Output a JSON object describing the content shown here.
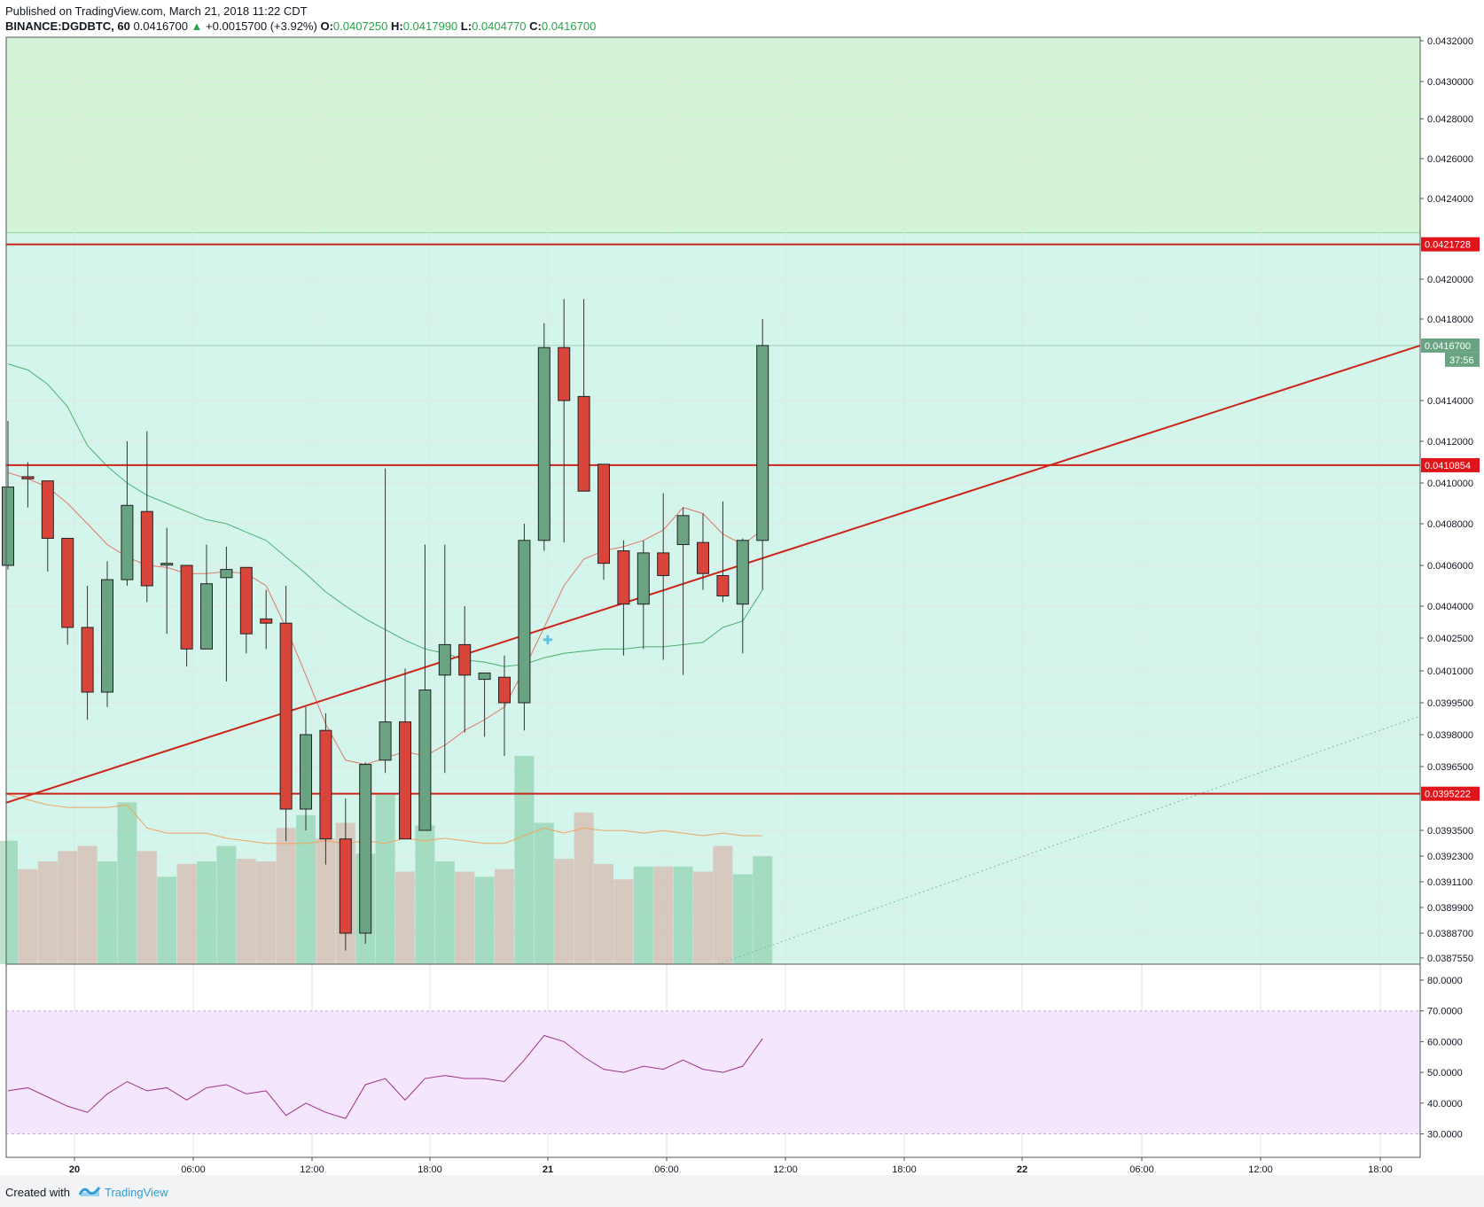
{
  "header": {
    "published": "Published on TradingView.com, March 21, 2018 11:22 CDT",
    "symbol": "BINANCE:DGDBTC, 60",
    "last": "0.0416700",
    "arrow": "▲",
    "change": "+0.0015700 (+3.92%)",
    "o_label": "O:",
    "o_value": "0.0407250",
    "h_label": "H:",
    "h_value": "0.0417990",
    "l_label": "L:",
    "l_value": "0.0404770",
    "c_label": "C:",
    "c_value": "0.0416700"
  },
  "footer": {
    "created": "Created with",
    "brand": "TradingView"
  },
  "colors": {
    "up": "#6aa382",
    "down": "#d9453b",
    "line": "#cc2418",
    "zone_top": "#d4f4d6",
    "zone_main": "#d4f5ec",
    "rsi_band": "#f4e6fc",
    "rsi_line": "#a0308a",
    "price_tag": "#6aa382",
    "level_tag": "#e0151b"
  },
  "chart_data": [
    {
      "type": "candlestick",
      "title": "BINANCE:DGDBTC, 60",
      "y_axis_labels": [
        "0.0432000",
        "0.0430000",
        "0.0428000",
        "0.0426000",
        "0.0424000",
        "0.0420000",
        "0.0418000",
        "0.0414000",
        "0.0412000",
        "0.0410000",
        "0.0408000",
        "0.0406000",
        "0.0404000",
        "0.0402500",
        "0.0401000",
        "0.0399500",
        "0.0398000",
        "0.0396500",
        "0.0393500",
        "0.0392300",
        "0.0391100",
        "0.0389900",
        "0.0388700",
        "0.0387550"
      ],
      "x_axis_labels": [
        "20",
        "06:00",
        "12:00",
        "18:00",
        "21",
        "06:00",
        "12:00",
        "18:00",
        "22",
        "06:00",
        "12:00",
        "18:00"
      ],
      "candles": [
        {
          "o": 0.0406,
          "h": 0.0413,
          "l": 0.04058,
          "c": 0.04098
        },
        {
          "o": 0.04103,
          "h": 0.0411,
          "l": 0.04088,
          "c": 0.04102
        },
        {
          "o": 0.04101,
          "h": 0.04101,
          "l": 0.04057,
          "c": 0.04073
        },
        {
          "o": 0.04073,
          "h": 0.04073,
          "l": 0.04022,
          "c": 0.0403
        },
        {
          "o": 0.0403,
          "h": 0.0405,
          "l": 0.03987,
          "c": 0.04
        },
        {
          "o": 0.04,
          "h": 0.04062,
          "l": 0.03993,
          "c": 0.04053
        },
        {
          "o": 0.04053,
          "h": 0.0412,
          "l": 0.0405,
          "c": 0.04089
        },
        {
          "o": 0.04086,
          "h": 0.04125,
          "l": 0.04042,
          "c": 0.0405
        },
        {
          "o": 0.04061,
          "h": 0.04078,
          "l": 0.04027,
          "c": 0.04061
        },
        {
          "o": 0.0406,
          "h": 0.0406,
          "l": 0.04012,
          "c": 0.0402
        },
        {
          "o": 0.0402,
          "h": 0.0407,
          "l": 0.0402,
          "c": 0.04051
        },
        {
          "o": 0.04054,
          "h": 0.04069,
          "l": 0.04005,
          "c": 0.04058
        },
        {
          "o": 0.04059,
          "h": 0.04059,
          "l": 0.04018,
          "c": 0.04027
        },
        {
          "o": 0.04034,
          "h": 0.04048,
          "l": 0.0402,
          "c": 0.04032
        },
        {
          "o": 0.04032,
          "h": 0.0405,
          "l": 0.0393,
          "c": 0.03945
        },
        {
          "o": 0.03945,
          "h": 0.03993,
          "l": 0.03935,
          "c": 0.0398
        },
        {
          "o": 0.03982,
          "h": 0.0399,
          "l": 0.03919,
          "c": 0.03931
        },
        {
          "o": 0.03931,
          "h": 0.0395,
          "l": 0.03879,
          "c": 0.03887
        },
        {
          "o": 0.03887,
          "h": 0.03967,
          "l": 0.03882,
          "c": 0.03966
        },
        {
          "o": 0.03968,
          "h": 0.04107,
          "l": 0.03962,
          "c": 0.03986
        },
        {
          "o": 0.03986,
          "h": 0.04011,
          "l": 0.03931,
          "c": 0.03931
        },
        {
          "o": 0.03935,
          "h": 0.0407,
          "l": 0.03935,
          "c": 0.04001
        },
        {
          "o": 0.04008,
          "h": 0.0407,
          "l": 0.03962,
          "c": 0.04022
        },
        {
          "o": 0.04022,
          "h": 0.0404,
          "l": 0.03981,
          "c": 0.04008
        },
        {
          "o": 0.04006,
          "h": 0.04009,
          "l": 0.03979,
          "c": 0.04009
        },
        {
          "o": 0.04007,
          "h": 0.04017,
          "l": 0.0397,
          "c": 0.03995
        },
        {
          "o": 0.03995,
          "h": 0.0408,
          "l": 0.03982,
          "c": 0.04072
        },
        {
          "o": 0.04072,
          "h": 0.04178,
          "l": 0.04067,
          "c": 0.04166
        },
        {
          "o": 0.04166,
          "h": 0.0419,
          "l": 0.04071,
          "c": 0.0414
        },
        {
          "o": 0.04142,
          "h": 0.0419,
          "l": 0.04096,
          "c": 0.04096
        },
        {
          "o": 0.04109,
          "h": 0.04109,
          "l": 0.04053,
          "c": 0.04061
        },
        {
          "o": 0.04067,
          "h": 0.04072,
          "l": 0.04017,
          "c": 0.04041
        },
        {
          "o": 0.04041,
          "h": 0.04072,
          "l": 0.0402,
          "c": 0.04066
        },
        {
          "o": 0.04066,
          "h": 0.04095,
          "l": 0.04015,
          "c": 0.04055
        },
        {
          "o": 0.0407,
          "h": 0.04088,
          "l": 0.04008,
          "c": 0.04084
        },
        {
          "o": 0.04071,
          "h": 0.04085,
          "l": 0.04048,
          "c": 0.04056
        },
        {
          "o": 0.04055,
          "h": 0.04091,
          "l": 0.04042,
          "c": 0.04045
        },
        {
          "o": 0.04041,
          "h": 0.04073,
          "l": 0.04018,
          "c": 0.04072
        },
        {
          "o": 0.04072,
          "h": 0.0418,
          "l": 0.04048,
          "c": 0.04167
        }
      ],
      "volume": [
        48,
        37,
        40,
        44,
        46,
        40,
        63,
        44,
        34,
        39,
        40,
        46,
        41,
        40,
        53,
        58,
        49,
        55,
        43,
        66,
        36,
        54,
        40,
        36,
        34,
        37,
        81,
        55,
        41,
        59,
        39,
        33,
        38,
        38,
        38,
        36,
        46,
        35,
        42
      ],
      "sma_fast": [
        0.04105,
        0.04102,
        0.04098,
        0.0409,
        0.0408,
        0.0407,
        0.04064,
        0.0406,
        0.04059,
        0.04056,
        0.04056,
        0.04057,
        0.04056,
        0.0405,
        0.0403,
        0.04008,
        0.03985,
        0.03968,
        0.03966,
        0.03969,
        0.03972,
        0.0397,
        0.03975,
        0.03982,
        0.03987,
        0.03993,
        0.04011,
        0.0403,
        0.0405,
        0.04063,
        0.04067,
        0.04069,
        0.04072,
        0.04077,
        0.04088,
        0.04085,
        0.04075,
        0.0407,
        0.04077
      ],
      "sma_slow": [
        0.04158,
        0.04155,
        0.04148,
        0.04137,
        0.04118,
        0.04108,
        0.041,
        0.04094,
        0.0409,
        0.04086,
        0.04082,
        0.0408,
        0.04076,
        0.04072,
        0.04064,
        0.04056,
        0.04047,
        0.0404,
        0.04034,
        0.04029,
        0.04024,
        0.0402,
        0.04018,
        0.04015,
        0.04014,
        0.04012,
        0.04013,
        0.04016,
        0.04018,
        0.04019,
        0.0402,
        0.0402,
        0.04021,
        0.04021,
        0.04022,
        0.04023,
        0.0403,
        0.04033,
        0.04048
      ],
      "volume_ma": [
        66,
        64,
        62,
        61,
        61,
        61,
        62,
        53,
        51,
        51,
        51,
        49,
        48,
        47,
        47,
        47,
        48,
        47,
        48,
        47,
        49,
        48,
        49,
        48,
        47,
        47,
        50,
        53,
        51,
        53,
        52,
        52,
        51,
        52,
        51,
        50,
        51,
        50,
        50
      ],
      "levels": [
        0.0421728,
        0.0410854,
        0.0395222
      ],
      "level_labels": [
        "0.0421728",
        "0.0410854",
        "0.0395222"
      ],
      "last_price": "0.0416700",
      "countdown": "37:56",
      "trendline": {
        "from": {
          "bar": 0,
          "y": 0.03948
        },
        "to": {
          "bar": 71,
          "y": 0.04167
        }
      },
      "zone_top": {
        "from": 0.04223,
        "to": 0.0432
      },
      "rsi": {
        "y_axis_labels": [
          "80.0000",
          "70.0000",
          "60.0000",
          "50.0000",
          "40.0000",
          "30.0000"
        ],
        "band": [
          30,
          70
        ],
        "values": [
          44,
          45,
          42,
          39,
          37,
          43,
          47,
          44,
          45,
          41,
          45,
          46,
          43,
          44,
          36,
          40,
          37,
          35,
          46,
          48,
          41,
          48,
          49,
          48,
          48,
          47,
          54,
          62,
          60,
          55,
          51,
          50,
          52,
          51,
          54,
          51,
          50,
          52,
          61
        ]
      }
    }
  ]
}
